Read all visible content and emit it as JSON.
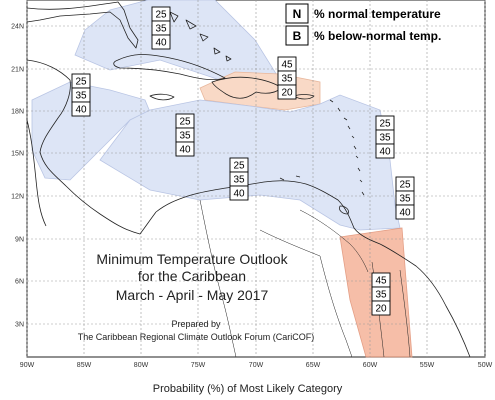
{
  "legend": [
    {
      "key": "N",
      "label": "% normal temperature"
    },
    {
      "key": "B",
      "label": "% below-normal temp."
    }
  ],
  "title_lines": [
    "Minimum Temperature Outlook",
    "for the Caribbean",
    "March - April - May 2017"
  ],
  "credit_lines": [
    "Prepared by",
    "The Caribbean Regional Climate Outlook Forum (CariCOF)"
  ],
  "caption": "Probability (%) of Most Likely Category",
  "lat_ticks": [
    "24N",
    "21N",
    "18N",
    "15N",
    "12N",
    "9N",
    "6N",
    "3N"
  ],
  "lon_ticks": [
    "90W",
    "85W",
    "80W",
    "75W",
    "70W",
    "65W",
    "60W",
    "55W",
    "50W"
  ],
  "probability_boxes": [
    {
      "id": "bahamas",
      "values": [
        "25",
        "35",
        "40"
      ]
    },
    {
      "id": "hispaniola",
      "values": [
        "45",
        "35",
        "20"
      ]
    },
    {
      "id": "western-caribbean",
      "values": [
        "25",
        "35",
        "40"
      ]
    },
    {
      "id": "jamaica",
      "values": [
        "25",
        "35",
        "40"
      ]
    },
    {
      "id": "southern-caribbean",
      "values": [
        "25",
        "35",
        "40"
      ]
    },
    {
      "id": "leeward-islands",
      "values": [
        "25",
        "35",
        "40"
      ]
    },
    {
      "id": "windward-islands",
      "values": [
        "25",
        "35",
        "40"
      ]
    },
    {
      "id": "guianas",
      "values": [
        "45",
        "35",
        "20"
      ]
    }
  ],
  "colors": {
    "below_normal_region": "#dde5f6",
    "above_normal_region": "#f9d9c6",
    "above_normal_region_strong": "#f5b39a",
    "coastline": "#222222",
    "grid": "#999999"
  }
}
